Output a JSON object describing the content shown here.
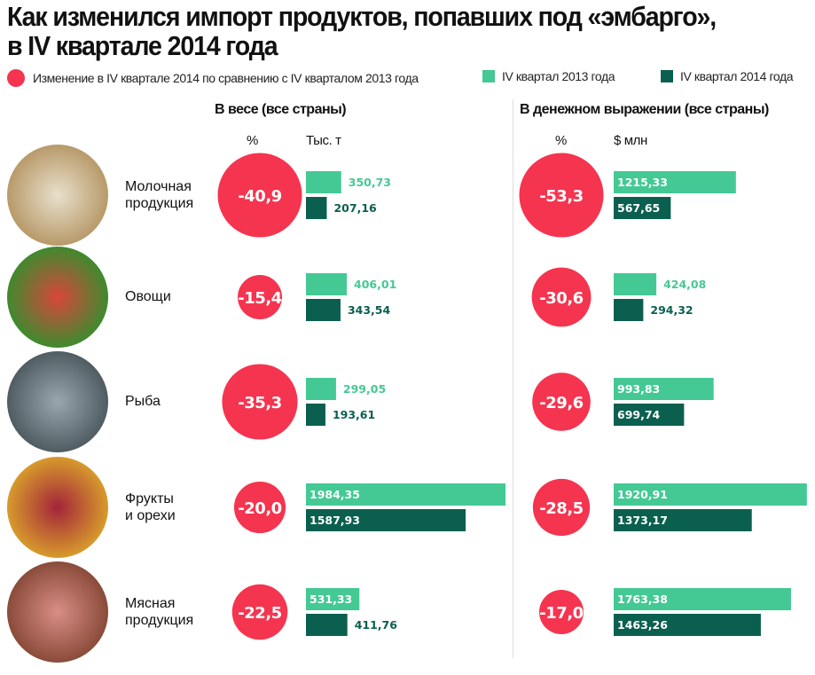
{
  "title": [
    "Как изменился импорт продуктов, попавших под «эмбарго»,",
    "в IV квартале 2014 года"
  ],
  "legend": {
    "change": "Изменение в IV квартале 2014 по сравнению с IV кварталом 2013 года",
    "q2013": "IV квартал 2013 года",
    "q2014": "IV квартал 2014 года"
  },
  "colors": {
    "change": "#f5344f",
    "q2013": "#44c994",
    "q2014": "#0b5f4f"
  },
  "chart_data": [
    {
      "type": "bar",
      "title": "В весе (все страны)",
      "pct_header": "%",
      "unit": "Тыс. т",
      "categories": [
        "Молочная продукция",
        "Овощи",
        "Рыба",
        "Фрукты и орехи",
        "Мясная продукция"
      ],
      "change_pct": [
        -40.9,
        -15.4,
        -35.3,
        -20.0,
        -22.5
      ],
      "change_labels": [
        "-40,9",
        "-15,4",
        "-35,3",
        "-20,0",
        "-22,5"
      ],
      "series": [
        {
          "name": "IV квартал 2013 года",
          "values": [
            350.73,
            406.01,
            299.05,
            1984.35,
            531.33
          ],
          "labels": [
            "350,73",
            "406,01",
            "299,05",
            "1984,35",
            "531,33"
          ]
        },
        {
          "name": "IV квартал 2014 года",
          "values": [
            207.16,
            343.54,
            193.61,
            1587.93,
            411.76
          ],
          "labels": [
            "207,16",
            "343,54",
            "193,61",
            "1587,93",
            "411,76"
          ]
        }
      ]
    },
    {
      "type": "bar",
      "title": "В денежном выражении (все страны)",
      "pct_header": "%",
      "unit": "$ млн",
      "categories": [
        "Молочная продукция",
        "Овощи",
        "Рыба",
        "Фрукты и орехи",
        "Мясная продукция"
      ],
      "change_pct": [
        -53.3,
        -30.6,
        -29.6,
        -28.5,
        -17.0
      ],
      "change_labels": [
        "-53,3",
        "-30,6",
        "-29,6",
        "-28,5",
        "-17,0"
      ],
      "series": [
        {
          "name": "IV квартал 2013 года",
          "values": [
            1215.33,
            424.08,
            993.83,
            1920.91,
            1763.38
          ],
          "labels": [
            "1215,33",
            "424,08",
            "993,83",
            "1920,91",
            "1763,38"
          ]
        },
        {
          "name": "IV квартал 2014 года",
          "values": [
            567.65,
            294.32,
            699.74,
            1373.17,
            1463.26
          ],
          "labels": [
            "567,65",
            "294,32",
            "699,74",
            "1373,17",
            "1463,26"
          ]
        }
      ]
    }
  ],
  "rows": [
    {
      "label1": "Молочная",
      "label2": "продукция",
      "photo": "dairy-photo"
    },
    {
      "label1": "Овощи",
      "label2": "",
      "photo": "vegetables-photo"
    },
    {
      "label1": "Рыба",
      "label2": "",
      "photo": "fish-photo"
    },
    {
      "label1": "Фрукты",
      "label2": "и орехи",
      "photo": "fruits-photo"
    },
    {
      "label1": "Мясная",
      "label2": "продукция",
      "photo": "meat-photo"
    }
  ]
}
